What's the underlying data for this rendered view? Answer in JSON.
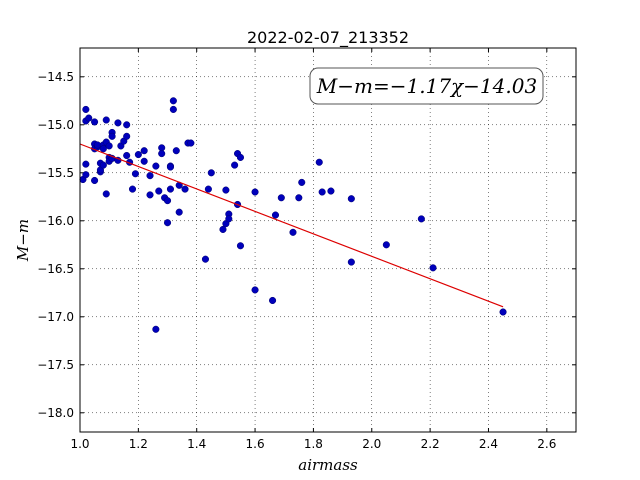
{
  "chart_data": {
    "type": "scatter",
    "title": "2022-02-07_213352",
    "xlabel": "airmass",
    "ylabel": "M−m",
    "xlim": [
      1.0,
      2.7
    ],
    "ylim": [
      -18.2,
      -14.2
    ],
    "y_inverted": true,
    "grid": true,
    "x_ticks": [
      1.0,
      1.2,
      1.4,
      1.6,
      1.8,
      2.0,
      2.2,
      2.4,
      2.6
    ],
    "x_tick_labels": [
      "1.0",
      "1.2",
      "1.4",
      "1.6",
      "1.8",
      "2.0",
      "2.2",
      "2.4",
      "2.6"
    ],
    "y_ticks": [
      -14.5,
      -15.0,
      -15.5,
      -16.0,
      -16.5,
      -17.0,
      -17.5,
      -18.0
    ],
    "y_tick_labels": [
      "−14.5",
      "−15.0",
      "−15.5",
      "−16.0",
      "−16.5",
      "−17.0",
      "−17.5",
      "−18.0"
    ],
    "annotation": "M−m=−1.17χ−14.03",
    "fit": {
      "slope": -1.17,
      "intercept": -14.03,
      "x_range": [
        1.0,
        2.45
      ],
      "color": "#dd0000"
    },
    "point_color": "#0000bb",
    "points": [
      [
        1.01,
        -15.57
      ],
      [
        1.02,
        -15.41
      ],
      [
        1.02,
        -15.52
      ],
      [
        1.02,
        -14.96
      ],
      [
        1.02,
        -14.84
      ],
      [
        1.03,
        -14.93
      ],
      [
        1.05,
        -14.97
      ],
      [
        1.05,
        -15.2
      ],
      [
        1.05,
        -15.25
      ],
      [
        1.05,
        -15.58
      ],
      [
        1.06,
        -15.23
      ],
      [
        1.06,
        -15.21
      ],
      [
        1.07,
        -15.4
      ],
      [
        1.07,
        -15.49
      ],
      [
        1.07,
        -15.47
      ],
      [
        1.08,
        -15.21
      ],
      [
        1.08,
        -15.25
      ],
      [
        1.08,
        -15.42
      ],
      [
        1.09,
        -14.95
      ],
      [
        1.09,
        -15.18
      ],
      [
        1.09,
        -15.72
      ],
      [
        1.1,
        -15.34
      ],
      [
        1.1,
        -15.38
      ],
      [
        1.1,
        -15.22
      ],
      [
        1.11,
        -15.08
      ],
      [
        1.11,
        -15.12
      ],
      [
        1.11,
        -15.35
      ],
      [
        1.13,
        -14.98
      ],
      [
        1.13,
        -15.37
      ],
      [
        1.14,
        -15.22
      ],
      [
        1.15,
        -15.17
      ],
      [
        1.16,
        -15.0
      ],
      [
        1.16,
        -15.12
      ],
      [
        1.16,
        -15.32
      ],
      [
        1.17,
        -15.39
      ],
      [
        1.18,
        -15.67
      ],
      [
        1.19,
        -15.51
      ],
      [
        1.2,
        -15.31
      ],
      [
        1.22,
        -15.27
      ],
      [
        1.22,
        -15.38
      ],
      [
        1.24,
        -15.53
      ],
      [
        1.24,
        -15.73
      ],
      [
        1.26,
        -15.43
      ],
      [
        1.26,
        -17.13
      ],
      [
        1.27,
        -15.69
      ],
      [
        1.28,
        -15.24
      ],
      [
        1.28,
        -15.3
      ],
      [
        1.29,
        -15.76
      ],
      [
        1.3,
        -15.79
      ],
      [
        1.3,
        -16.02
      ],
      [
        1.31,
        -15.43
      ],
      [
        1.31,
        -15.44
      ],
      [
        1.31,
        -15.67
      ],
      [
        1.32,
        -14.75
      ],
      [
        1.32,
        -14.84
      ],
      [
        1.33,
        -15.27
      ],
      [
        1.34,
        -15.63
      ],
      [
        1.34,
        -15.91
      ],
      [
        1.36,
        -15.67
      ],
      [
        1.37,
        -15.19
      ],
      [
        1.38,
        -15.19
      ],
      [
        1.43,
        -16.4
      ],
      [
        1.44,
        -15.67
      ],
      [
        1.45,
        -15.5
      ],
      [
        1.49,
        -16.09
      ],
      [
        1.5,
        -16.03
      ],
      [
        1.5,
        -15.68
      ],
      [
        1.51,
        -15.93
      ],
      [
        1.51,
        -15.98
      ],
      [
        1.53,
        -15.42
      ],
      [
        1.54,
        -15.3
      ],
      [
        1.54,
        -15.83
      ],
      [
        1.55,
        -15.34
      ],
      [
        1.55,
        -16.26
      ],
      [
        1.6,
        -15.7
      ],
      [
        1.6,
        -16.72
      ],
      [
        1.66,
        -16.83
      ],
      [
        1.67,
        -15.94
      ],
      [
        1.69,
        -15.76
      ],
      [
        1.73,
        -16.12
      ],
      [
        1.75,
        -15.76
      ],
      [
        1.76,
        -15.6
      ],
      [
        1.82,
        -15.39
      ],
      [
        1.83,
        -15.7
      ],
      [
        1.86,
        -15.69
      ],
      [
        1.93,
        -15.77
      ],
      [
        1.93,
        -16.43
      ],
      [
        2.05,
        -16.25
      ],
      [
        2.17,
        -15.98
      ],
      [
        2.21,
        -16.49
      ],
      [
        2.45,
        -16.95
      ]
    ]
  }
}
